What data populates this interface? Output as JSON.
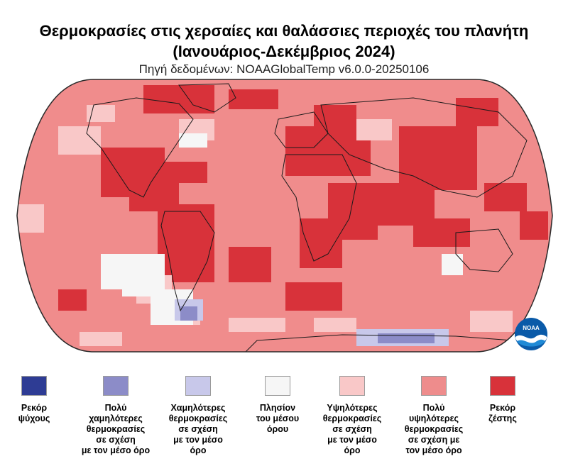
{
  "header": {
    "title_line1": "Θερμοκρασίες στις χερσαίες και θαλάσσιες περιοχές του πλανήτη",
    "title_line2": "(Ιανουάριος-Δεκέμβριος 2024)",
    "source": "Πηγή δεδομένων: NOAAGlobalTemp v6.0.0-20250106"
  },
  "map": {
    "projection": "robinson-like",
    "land_outline_color": "#1a1a1a",
    "ocean_base_color": "#f08c8c"
  },
  "logo": {
    "name": "noaa-logo",
    "text": "NOAA"
  },
  "legend": {
    "items": [
      {
        "label": "Ρεκόρ\nψύχους",
        "color": "#2e3c94"
      },
      {
        "label": "Πολύ\nχαμηλότερες\nθερμοκρασίες\nσε σχέση\nμε τον μέσο όρο",
        "color": "#8c8cc8"
      },
      {
        "label": "Χαμηλότερες\nθερμοκρασίες\nσε σχέση\nμε τον μέσο\nόρο",
        "color": "#c8c8ea"
      },
      {
        "label": "Πλησίον\nτου μέσου\nόρου",
        "color": "#f6f6f6"
      },
      {
        "label": "Υψηλότερες\nθερμοκρασίες\nσε σχέση\nμε τον μέσο\nόρο",
        "color": "#f9c8c8"
      },
      {
        "label": "Πολύ\nυψηλότερες\nθερμοκρασίες\nσε σχέση με\nτον μέσο όρο",
        "color": "#ee8c8c"
      },
      {
        "label": "Ρεκόρ\nζέστης",
        "color": "#d8323a"
      }
    ]
  }
}
